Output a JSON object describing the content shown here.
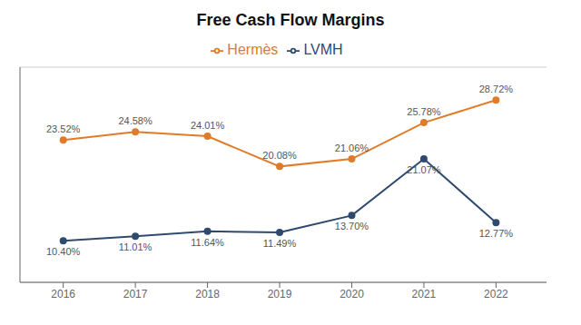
{
  "chart_data": {
    "type": "line",
    "title": "Free Cash Flow Margins",
    "x": [
      2016,
      2017,
      2018,
      2019,
      2020,
      2021,
      2022
    ],
    "xlim": [
      2015.4,
      2022.7
    ],
    "xticks": [
      2016,
      2017,
      2018,
      2019,
      2020,
      2021,
      2022
    ],
    "ylim": [
      5,
      33
    ],
    "yticks": [
      5,
      10,
      15,
      20,
      25,
      30
    ],
    "grid": true,
    "legend": "top",
    "data_labels": true,
    "tick_labels": "x",
    "series": [
      {
        "name": "LVMH",
        "color": "#2e4a6e",
        "marker": "circle",
        "values": [
          10.4,
          11.01,
          11.64,
          11.49,
          13.7,
          21.07,
          12.77
        ],
        "value_labels": [
          "10.40%",
          "11.01%",
          "11.64%",
          "11.49%",
          "13.70%",
          "21.07%",
          "12.77%"
        ]
      },
      {
        "name": "Hermès",
        "color": "#e07b2a",
        "marker": "circle",
        "values": [
          23.52,
          24.58,
          24.01,
          20.08,
          21.06,
          25.78,
          28.72
        ],
        "value_labels": [
          "23.52%",
          "24.58%",
          "24.01%",
          "20.08%",
          "21.06%",
          "25.78%",
          "28.72%"
        ]
      }
    ]
  }
}
